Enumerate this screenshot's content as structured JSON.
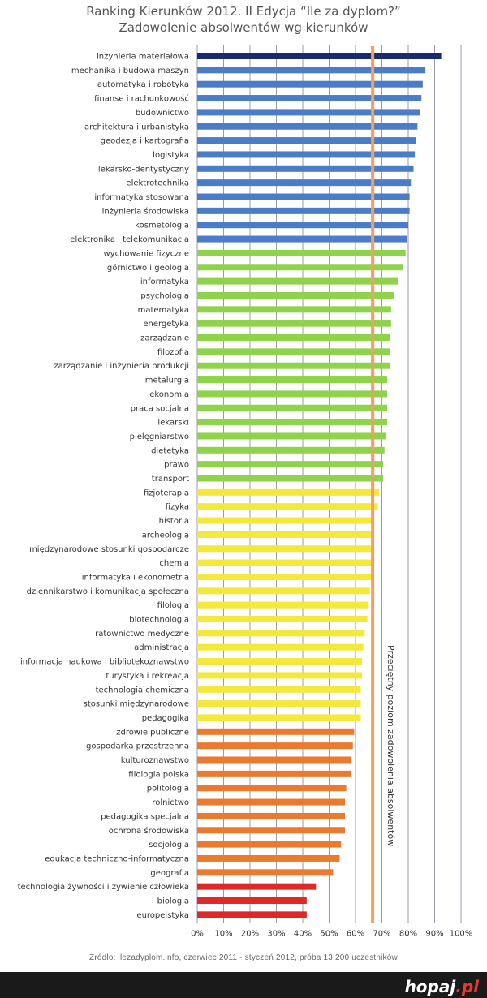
{
  "header": {
    "title_line1": "Ranking Kierunków 2012. II Edycja “Ile za dyplom?”",
    "title_line2": "Zadowolenie absolwentów wg kierunków"
  },
  "footer": {
    "source": "Źródło: ilezadyplom.info, czerwiec 2011 - styczeń 2012, próba 13 200 uczestników",
    "logo_main": "hopaj",
    "logo_suffix": ".pl"
  },
  "chart_data": {
    "type": "bar",
    "orientation": "horizontal",
    "title": "Ranking Kierunków 2012. II Edycja “Ile za dyplom?”",
    "subtitle": "Zadowolenie absolwentów wg kierunków",
    "xlim": [
      0,
      100
    ],
    "x_tick_labels": [
      "0%",
      "10%",
      "20%",
      "30%",
      "40%",
      "50%",
      "60%",
      "70%",
      "80%",
      "90%",
      "100%"
    ],
    "grid": "vertical",
    "reference_line": {
      "value": 66.5,
      "label": "Przeciętny poziom zadowolenia absolwentów",
      "color": "#f0a060"
    },
    "color_groups": {
      "dark_blue": "#1a2a6e",
      "blue": "#4a7cc8",
      "green": "#8ed34a",
      "yellow": "#f4e83a",
      "orange": "#ec7a2e",
      "red": "#e02828"
    },
    "categories": [
      "inżynieria materiałowa",
      "mechanika i budowa maszyn",
      "automatyka i robotyka",
      "finanse i rachunkowość",
      "budownictwo",
      "architektura i urbanistyka",
      "geodezja i kartografia",
      "logistyka",
      "lekarsko-dentystyczny",
      "elektrotechnika",
      "informatyka stosowana",
      "inżynieria środowiska",
      "kosmetologia",
      "elektronika i telekomunikacja",
      "wychowanie fizyczne",
      "górnictwo i geologia",
      "informatyka",
      "psychologia",
      "matematyka",
      "energetyka",
      "zarządzanie",
      "filozofia",
      "zarządzanie i inżynieria produkcji",
      "metalurgia",
      "ekonomia",
      "praca socjalna",
      "lekarski",
      "pielęgniarstwo",
      "dietetyka",
      "prawo",
      "transport",
      "fizjoterapia",
      "fizyka",
      "historia",
      "archeologia",
      "międzynarodowe stosunki gospodarcze",
      "chemia",
      "informatyka i ekonometria",
      "dziennikarstwo i komunikacja społeczna",
      "filologia",
      "biotechnologia",
      "ratownictwo medyczne",
      "administracja",
      "informacja naukowa i bibliotekoznawstwo",
      "turystyka i rekreacja",
      "technologia chemiczna",
      "stosunki międzynarodowe",
      "pedagogika",
      "zdrowie publiczne",
      "gospodarka przestrzenna",
      "kulturoznawstwo",
      "filologia polska",
      "politologia",
      "rolnictwo",
      "pedagogika specjalna",
      "ochrona środowiska",
      "socjologia",
      "edukacja techniczno-informatyczna",
      "geografia",
      "technologia żywności i żywienie człowieka",
      "biologia",
      "europeistyka"
    ],
    "values": [
      92.5,
      86.5,
      85.5,
      85,
      84.5,
      83.5,
      83,
      82.5,
      82,
      81,
      80.5,
      80.5,
      80,
      79.5,
      79,
      78,
      76,
      74.5,
      73.5,
      73.5,
      73,
      73,
      73,
      72,
      72,
      72,
      72,
      71.5,
      71,
      70.5,
      70.5,
      69,
      68.5,
      67,
      66.5,
      66.5,
      66.5,
      66,
      65.5,
      65,
      64.5,
      63.5,
      63,
      62.5,
      62.5,
      62,
      62,
      62,
      59.5,
      59,
      58.5,
      58.5,
      56.5,
      56,
      56,
      56,
      54.5,
      54,
      51.5,
      45,
      41.5,
      41.5
    ],
    "groups": [
      "dark_blue",
      "blue",
      "blue",
      "blue",
      "blue",
      "blue",
      "blue",
      "blue",
      "blue",
      "blue",
      "blue",
      "blue",
      "blue",
      "blue",
      "green",
      "green",
      "green",
      "green",
      "green",
      "green",
      "green",
      "green",
      "green",
      "green",
      "green",
      "green",
      "green",
      "green",
      "green",
      "green",
      "green",
      "yellow",
      "yellow",
      "yellow",
      "yellow",
      "yellow",
      "yellow",
      "yellow",
      "yellow",
      "yellow",
      "yellow",
      "yellow",
      "yellow",
      "yellow",
      "yellow",
      "yellow",
      "yellow",
      "yellow",
      "orange",
      "orange",
      "orange",
      "orange",
      "orange",
      "orange",
      "orange",
      "orange",
      "orange",
      "orange",
      "orange",
      "red",
      "red",
      "red"
    ]
  }
}
